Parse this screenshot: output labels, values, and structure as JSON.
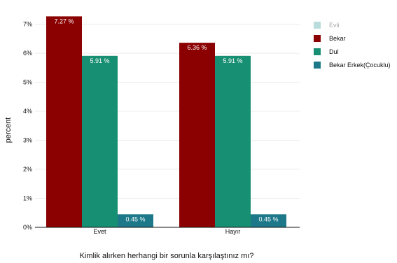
{
  "chart_data": {
    "type": "bar",
    "categories": [
      "Evet",
      "Hayır"
    ],
    "series": [
      {
        "name": "Evli",
        "values": [
          null,
          null
        ],
        "color": "#7fbfbf",
        "hidden": true
      },
      {
        "name": "Bekar",
        "values": [
          7.27,
          6.36
        ],
        "color": "#8b0000"
      },
      {
        "name": "Dul",
        "values": [
          5.91,
          5.91
        ],
        "color": "#178f72"
      },
      {
        "name": "Bekar Erkek(Çocuklu)",
        "values": [
          0.45,
          0.45
        ],
        "color": "#1d7889"
      }
    ],
    "data_labels": [
      [
        "7.27 %",
        "5.91 %",
        "0.45 %"
      ],
      [
        "6.36 %",
        "5.91 %",
        "0.45 %"
      ]
    ],
    "title": "",
    "xlabel": "Kimlik alırken herhangi bir sorunla karşılaştınız mı?",
    "ylabel": "percent",
    "ylim": [
      0,
      7.4
    ],
    "yticks": [
      0,
      1,
      2,
      3,
      4,
      5,
      6,
      7
    ],
    "ytick_labels": [
      "0%",
      "1%",
      "2%",
      "3%",
      "4%",
      "5%",
      "6%",
      "7%"
    ],
    "grid": true,
    "legend_position": "right"
  }
}
